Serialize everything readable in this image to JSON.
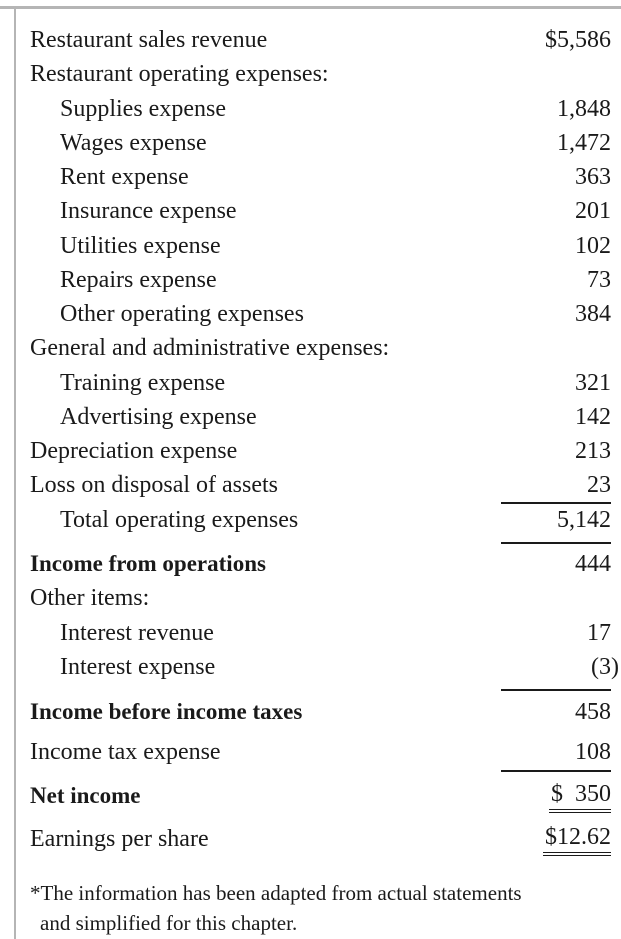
{
  "statement": {
    "rows": [
      {
        "label": "Restaurant sales revenue",
        "amount": "$5,586"
      },
      {
        "label": "Restaurant operating expenses:",
        "amount": ""
      },
      {
        "label": "Supplies expense",
        "amount": "1,848"
      },
      {
        "label": "Wages expense",
        "amount": "1,472"
      },
      {
        "label": "Rent expense",
        "amount": "363"
      },
      {
        "label": "Insurance expense",
        "amount": "201"
      },
      {
        "label": "Utilities expense",
        "amount": "102"
      },
      {
        "label": "Repairs expense",
        "amount": "73"
      },
      {
        "label": "Other operating expenses",
        "amount": "384"
      },
      {
        "label": "General and administrative expenses:",
        "amount": ""
      },
      {
        "label": "Training expense",
        "amount": "321"
      },
      {
        "label": "Advertising expense",
        "amount": "142"
      },
      {
        "label": "Depreciation expense",
        "amount": "213"
      },
      {
        "label": "Loss on disposal of assets",
        "amount": "23"
      },
      {
        "label": "Total operating expenses",
        "amount": "5,142"
      },
      {
        "label": "Income from operations",
        "amount": "444"
      },
      {
        "label": "Other items:",
        "amount": ""
      },
      {
        "label": "Interest revenue",
        "amount": "17"
      },
      {
        "label": "Interest expense",
        "amount": "(3)"
      },
      {
        "label": "Income before income taxes",
        "amount": "458"
      },
      {
        "label": "Income tax expense",
        "amount": "108"
      },
      {
        "label": "Net income",
        "amount": "$  350"
      },
      {
        "label": "Earnings per share",
        "amount": "$12.62"
      }
    ],
    "footnote": {
      "line1": "*The information has been adapted from actual statements",
      "line2": "and simplified for this chapter."
    }
  }
}
